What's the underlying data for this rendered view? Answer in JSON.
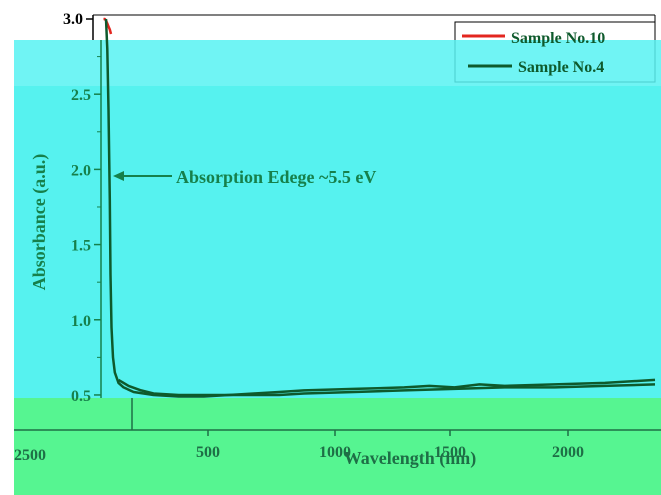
{
  "colors": {
    "background": "#ffffff",
    "overlay_upper": "#57f2f2",
    "overlay_lower": "#56f591",
    "axis_upper": "#16804b",
    "axis_top": "#000000",
    "axis_lower": "#1e6e46",
    "series_red": "#e3261f",
    "series_green": "#0e5a2c"
  },
  "chart_data": {
    "type": "line",
    "title": "",
    "xlabel": "Wavelength (nm)",
    "ylabel": "Absorbance (a.u.)",
    "xlim": [
      190,
      2400
    ],
    "ylim": [
      0.4,
      3.0
    ],
    "x_ticks": [
      {
        "value": 500,
        "label": "500"
      },
      {
        "value": 1000,
        "label": "1000"
      },
      {
        "value": 1500,
        "label": "1500"
      },
      {
        "value": 2000,
        "label": "2000"
      }
    ],
    "y_ticks": [
      {
        "value": 0.5,
        "label": "0.5"
      },
      {
        "value": 1.0,
        "label": "1.0"
      },
      {
        "value": 1.5,
        "label": "1.5"
      },
      {
        "value": 2.0,
        "label": "2.0"
      },
      {
        "value": 2.5,
        "label": "2.5"
      },
      {
        "value": 3.0,
        "label": "3.0"
      }
    ],
    "extra_tick_label": "2500",
    "grid": false,
    "legend_position": "top-right",
    "legend": [
      {
        "name": "Sample No.10",
        "color": "#e3261f"
      },
      {
        "name": "Sample No.4",
        "color": "#0e5a2c"
      }
    ],
    "annotation": {
      "text": "Absorption Edege ~5.5 eV",
      "x": 230,
      "y": 2.0
    },
    "series": [
      {
        "name": "Sample No.10",
        "color": "#e3261f",
        "x": [
          200,
          205,
          210,
          215,
          220,
          225,
          230
        ],
        "y": [
          3.0,
          3.0,
          2.99,
          2.97,
          2.95,
          2.93,
          2.9
        ]
      },
      {
        "name": "Sample No.4",
        "color": "#0e5a2c",
        "x": [
          210,
          215,
          220,
          225,
          228,
          232,
          238,
          245,
          260,
          280,
          320,
          400,
          500,
          600,
          700,
          800,
          900,
          1000,
          1200,
          1400,
          1600,
          1800,
          2000,
          2200,
          2400
        ],
        "y": [
          3.0,
          2.8,
          2.4,
          1.8,
          1.3,
          0.95,
          0.75,
          0.65,
          0.58,
          0.55,
          0.52,
          0.5,
          0.49,
          0.49,
          0.5,
          0.5,
          0.5,
          0.51,
          0.52,
          0.53,
          0.54,
          0.55,
          0.55,
          0.56,
          0.57
        ]
      },
      {
        "name": "",
        "color": "#0e5a2c",
        "x": [
          260,
          300,
          350,
          400,
          500,
          600,
          700,
          800,
          900,
          1000,
          1200,
          1400,
          1500,
          1600,
          1700,
          1800,
          2000,
          2200,
          2400
        ],
        "y": [
          0.6,
          0.56,
          0.53,
          0.51,
          0.5,
          0.5,
          0.5,
          0.51,
          0.52,
          0.53,
          0.54,
          0.55,
          0.56,
          0.55,
          0.57,
          0.56,
          0.57,
          0.58,
          0.6
        ]
      }
    ]
  }
}
